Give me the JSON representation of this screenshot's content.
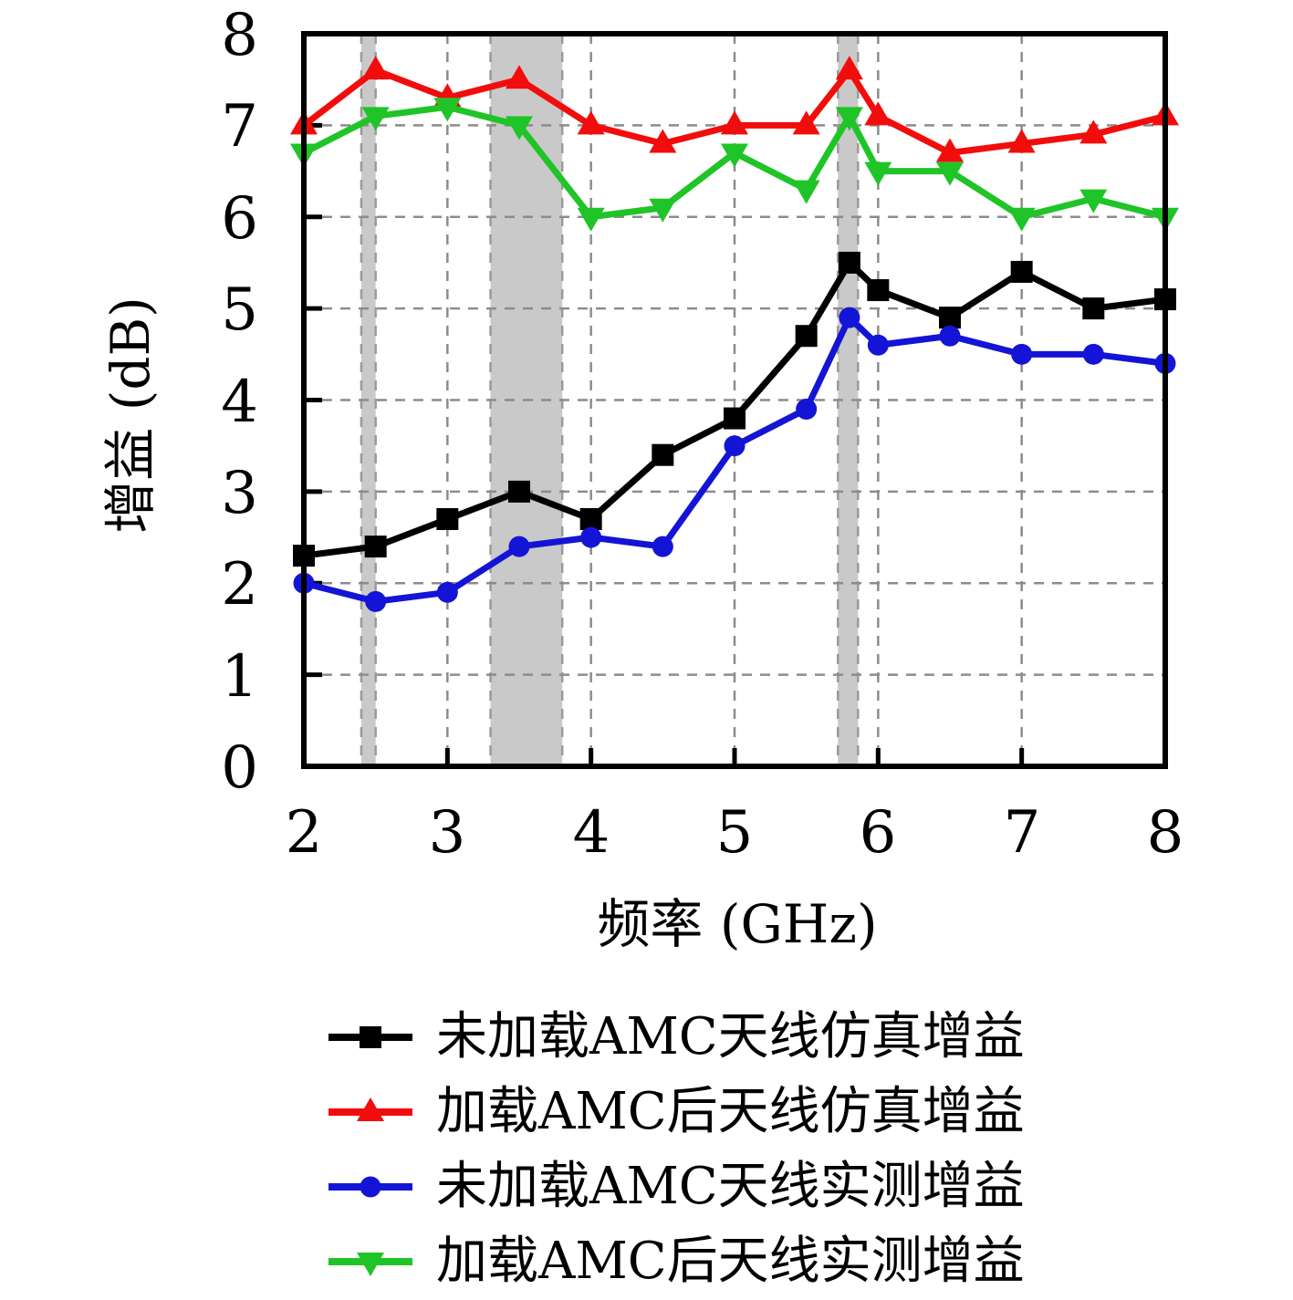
{
  "chart_data": {
    "type": "line",
    "title": "",
    "xlabel": "频率 (GHz)",
    "ylabel": "增益 (dB)",
    "xlim": [
      2,
      8
    ],
    "ylim": [
      0,
      8
    ],
    "x_ticks": [
      2,
      3,
      4,
      5,
      6,
      7,
      8
    ],
    "y_ticks": [
      0,
      1,
      2,
      3,
      4,
      5,
      6,
      7,
      8
    ],
    "grid": "dashed",
    "legend_position": "below",
    "x": [
      2,
      2.5,
      3,
      3.5,
      4,
      4.5,
      5,
      5.5,
      5.8,
      6,
      6.5,
      7,
      7.5,
      8
    ],
    "series": [
      {
        "name": "未加载AMC天线仿真增益",
        "marker": "square",
        "color": "#000000",
        "values": [
          2.3,
          2.4,
          2.7,
          3.0,
          2.7,
          3.4,
          3.8,
          4.7,
          5.5,
          5.2,
          4.9,
          5.4,
          5.0,
          5.1
        ]
      },
      {
        "name": "加载AMC后天线仿真增益",
        "marker": "triangle-up",
        "color": "#f20d0d",
        "values": [
          7.0,
          7.6,
          7.3,
          7.5,
          7.0,
          6.8,
          7.0,
          7.0,
          7.6,
          7.1,
          6.7,
          6.8,
          6.9,
          7.1
        ]
      },
      {
        "name": "未加载AMC天线实测增益",
        "marker": "circle",
        "color": "#1414d6",
        "values": [
          2.0,
          1.8,
          1.9,
          2.4,
          2.5,
          2.4,
          3.5,
          3.9,
          4.9,
          4.6,
          4.7,
          4.5,
          4.5,
          4.4
        ]
      },
      {
        "name": "加载AMC后天线实测增益",
        "marker": "triangle-down",
        "color": "#1fc426",
        "values": [
          6.7,
          7.1,
          7.2,
          7.0,
          6.0,
          6.1,
          6.7,
          6.3,
          7.1,
          6.5,
          6.5,
          6.0,
          6.2,
          6.0
        ]
      }
    ],
    "highlight_bands": [
      {
        "from": 2.4,
        "to": 2.5
      },
      {
        "from": 3.3,
        "to": 3.8
      },
      {
        "from": 5.72,
        "to": 5.86
      }
    ],
    "band_color": "#c9c9c9"
  }
}
